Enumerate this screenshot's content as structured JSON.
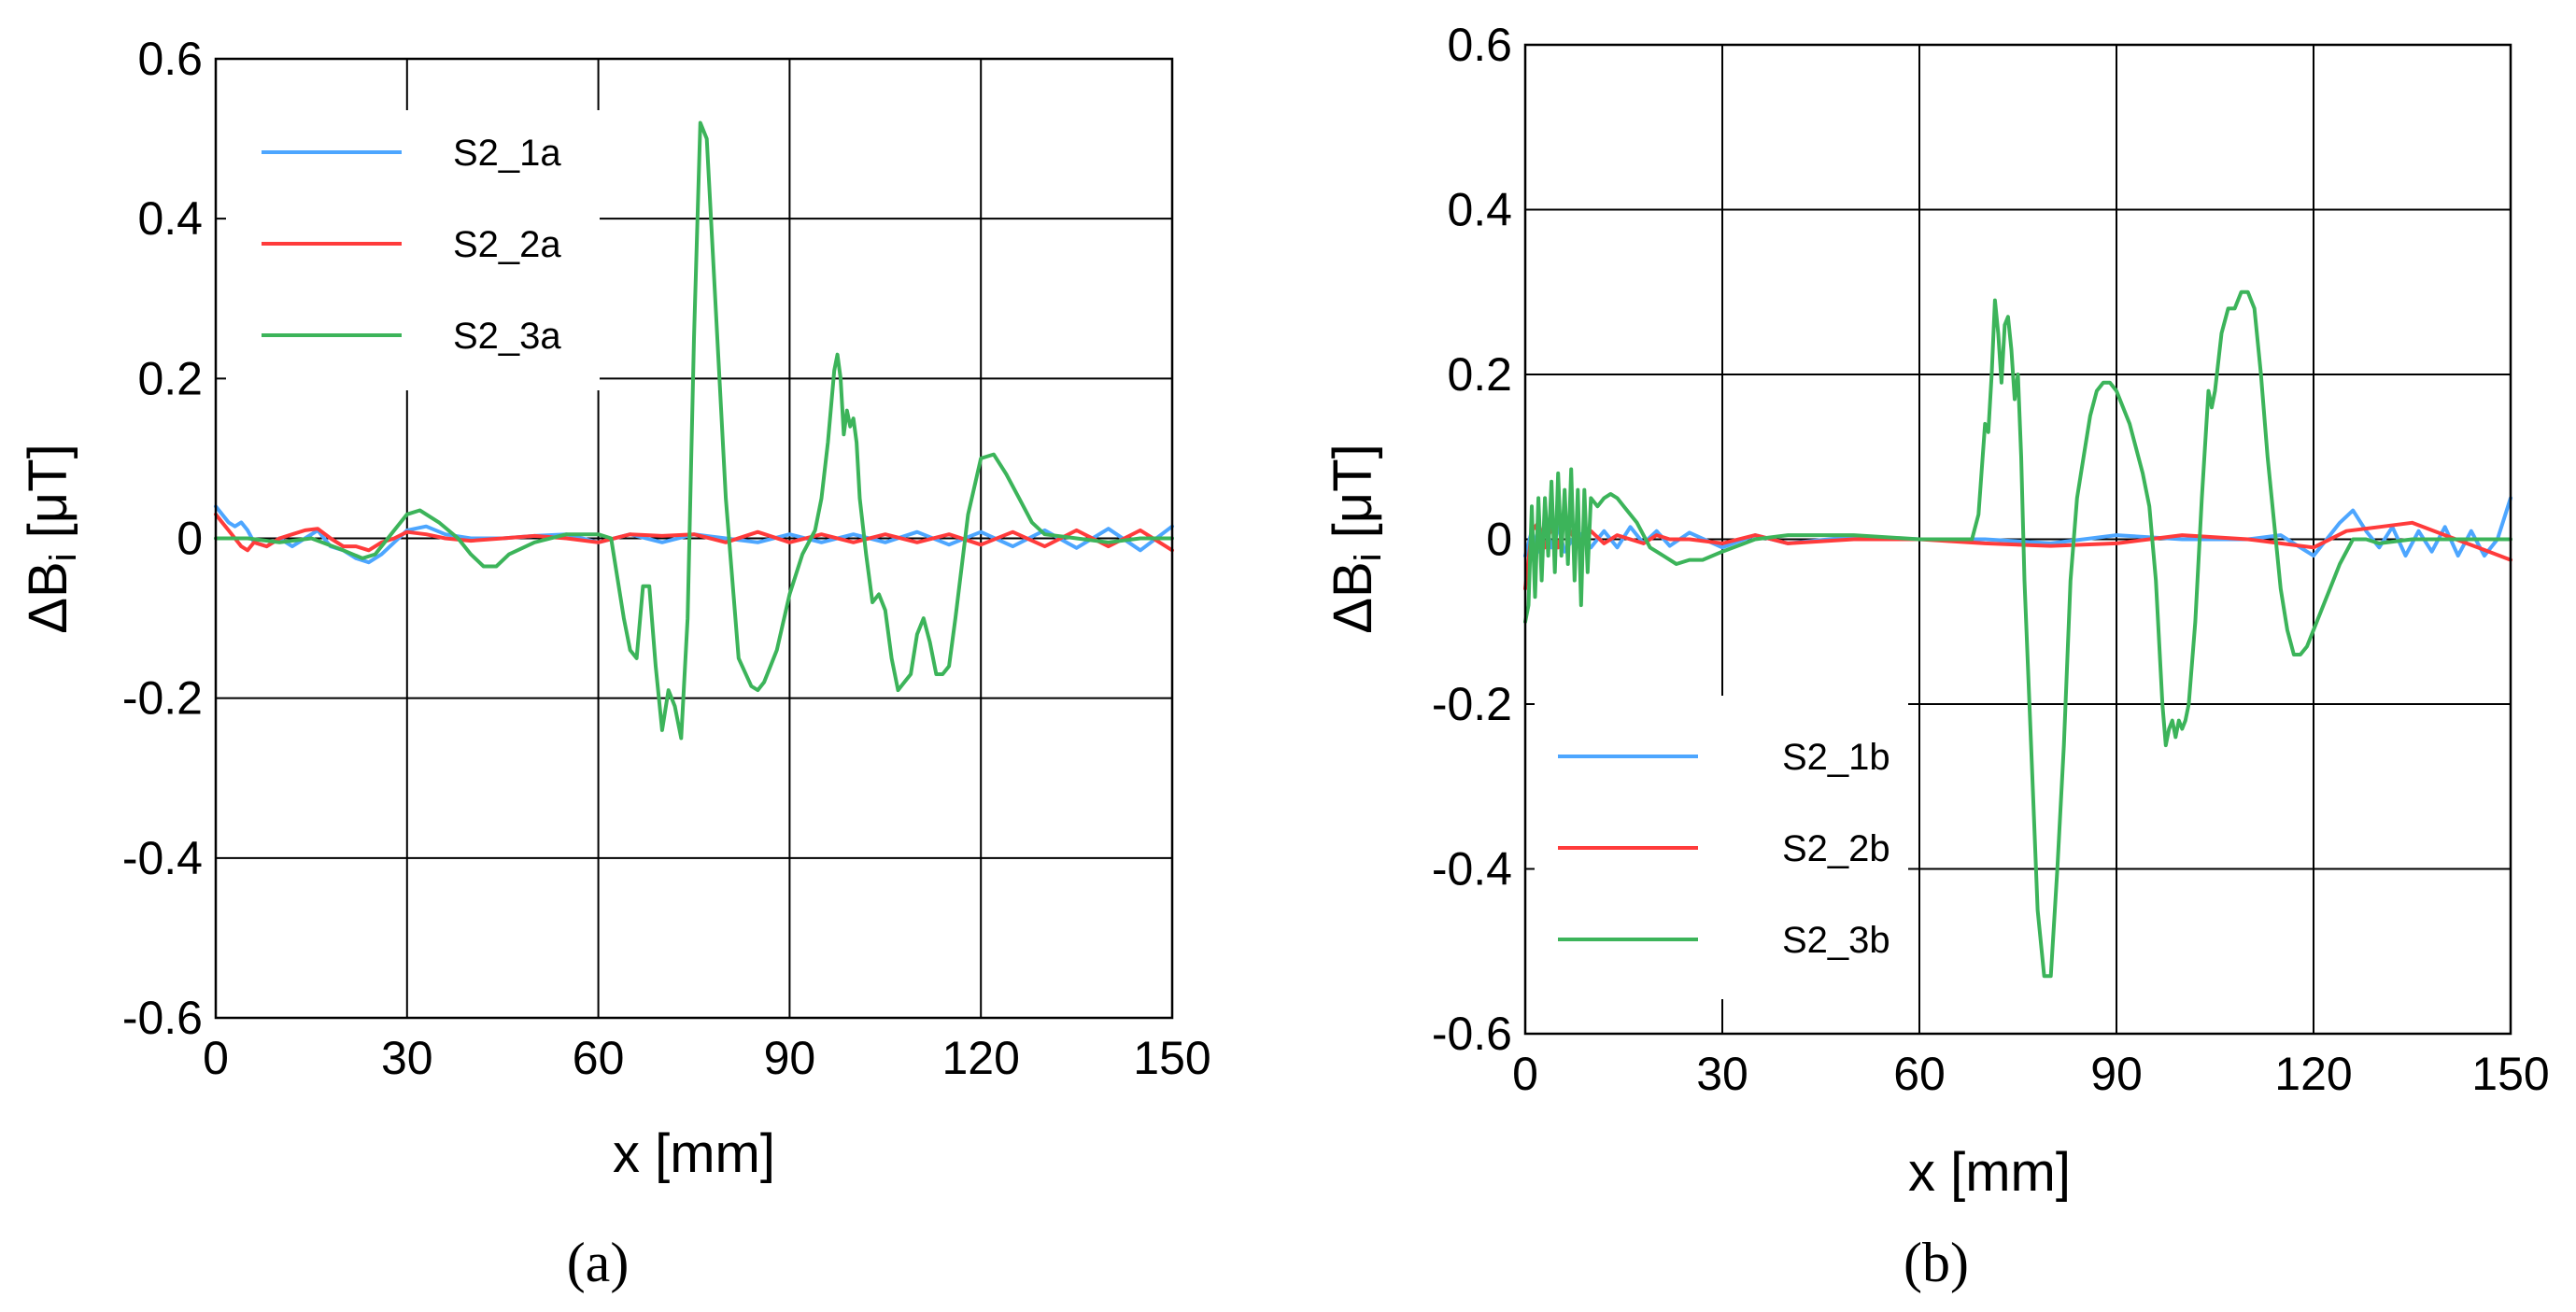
{
  "chart_data": [
    {
      "type": "line",
      "panel_label": "(a)",
      "xlabel": "x [mm]",
      "ylabel_main": "ΔB",
      "ylabel_sub": "i",
      "ylabel_unit": " [μT]",
      "xlim": [
        0,
        150
      ],
      "ylim": [
        -0.6,
        0.6
      ],
      "xticks": [
        0,
        30,
        60,
        90,
        120,
        150
      ],
      "xtick_labels": [
        "0",
        "30",
        "60",
        "90",
        "120",
        "150"
      ],
      "yticks": [
        -0.6,
        -0.4,
        -0.2,
        0,
        0.2,
        0.4,
        0.6
      ],
      "ytick_labels": [
        "-0.6",
        "-0.4",
        "-0.2",
        "0",
        "0.2",
        "0.4",
        "0.6"
      ],
      "grid": true,
      "legend_position": "top-left",
      "series": [
        {
          "name": "S2_1a",
          "color": "#4da6ff",
          "x": [
            0,
            1,
            2,
            3,
            4,
            5,
            6,
            8,
            10,
            12,
            14,
            16,
            18,
            20,
            22,
            24,
            26,
            28,
            30,
            33,
            36,
            40,
            45,
            50,
            55,
            60,
            65,
            70,
            75,
            80,
            85,
            90,
            95,
            100,
            105,
            110,
            115,
            120,
            125,
            130,
            135,
            140,
            145,
            150
          ],
          "y": [
            0.04,
            0.03,
            0.02,
            0.015,
            0.02,
            0.01,
            -0.005,
            -0.01,
            0.0,
            -0.01,
            0.0,
            0.01,
            -0.01,
            -0.015,
            -0.025,
            -0.03,
            -0.02,
            -0.005,
            0.01,
            0.015,
            0.005,
            0.0,
            0.0,
            0.003,
            0.005,
            -0.005,
            0.005,
            -0.005,
            0.005,
            0.0,
            -0.005,
            0.005,
            -0.005,
            0.005,
            -0.005,
            0.008,
            -0.008,
            0.008,
            -0.01,
            0.01,
            -0.012,
            0.012,
            -0.015,
            0.015
          ]
        },
        {
          "name": "S2_2a",
          "color": "#ff3b3b",
          "x": [
            0,
            1,
            2,
            3,
            4,
            5,
            6,
            8,
            10,
            12,
            14,
            16,
            18,
            20,
            22,
            24,
            26,
            28,
            30,
            33,
            36,
            40,
            45,
            50,
            55,
            60,
            65,
            70,
            75,
            80,
            85,
            90,
            95,
            100,
            105,
            110,
            115,
            120,
            125,
            130,
            135,
            140,
            145,
            150
          ],
          "y": [
            0.03,
            0.02,
            0.01,
            0.0,
            -0.01,
            -0.015,
            -0.005,
            -0.01,
            0.0,
            0.005,
            0.01,
            0.012,
            0.0,
            -0.01,
            -0.01,
            -0.015,
            -0.005,
            0.0,
            0.008,
            0.005,
            0.0,
            -0.003,
            0.0,
            0.003,
            0.0,
            -0.005,
            0.005,
            0.003,
            0.005,
            -0.005,
            0.008,
            -0.005,
            0.005,
            -0.005,
            0.005,
            -0.005,
            0.005,
            -0.008,
            0.008,
            -0.01,
            0.01,
            -0.01,
            0.01,
            -0.015
          ]
        },
        {
          "name": "S2_3a",
          "color": "#3cb45a",
          "x": [
            0,
            5,
            10,
            15,
            20,
            23,
            25,
            28,
            30,
            32,
            35,
            38,
            40,
            42,
            44,
            46,
            50,
            55,
            60,
            62,
            63,
            64,
            65,
            66,
            67,
            68,
            69,
            70,
            71,
            72,
            73,
            74,
            75,
            76,
            77,
            78,
            80,
            82,
            84,
            85,
            86,
            88,
            90,
            92,
            94,
            95,
            96,
            97,
            97.5,
            98,
            98.5,
            99,
            99.5,
            100,
            100.5,
            101,
            102,
            103,
            104,
            105,
            106,
            107,
            108,
            109,
            110,
            111,
            112,
            113,
            114,
            115,
            116,
            118,
            120,
            122,
            124,
            126,
            128,
            130,
            135,
            140,
            145,
            150
          ],
          "y": [
            0,
            0,
            -0.005,
            0,
            -0.015,
            -0.025,
            -0.02,
            0.01,
            0.03,
            0.035,
            0.02,
            0,
            -0.02,
            -0.035,
            -0.035,
            -0.02,
            -0.005,
            0.005,
            0.005,
            0,
            -0.05,
            -0.1,
            -0.14,
            -0.15,
            -0.06,
            -0.06,
            -0.16,
            -0.24,
            -0.19,
            -0.21,
            -0.25,
            -0.1,
            0.25,
            0.52,
            0.5,
            0.35,
            0.05,
            -0.15,
            -0.185,
            -0.19,
            -0.18,
            -0.14,
            -0.07,
            -0.02,
            0.01,
            0.05,
            0.12,
            0.21,
            0.23,
            0.2,
            0.13,
            0.16,
            0.14,
            0.15,
            0.12,
            0.05,
            -0.02,
            -0.08,
            -0.07,
            -0.09,
            -0.15,
            -0.19,
            -0.18,
            -0.17,
            -0.12,
            -0.1,
            -0.13,
            -0.17,
            -0.17,
            -0.16,
            -0.1,
            0.03,
            0.1,
            0.105,
            0.08,
            0.05,
            0.02,
            0.005,
            0,
            -0.005,
            0,
            0
          ]
        }
      ]
    },
    {
      "type": "line",
      "panel_label": "(b)",
      "xlabel": "x [mm]",
      "ylabel_main": "ΔB",
      "ylabel_sub": "i",
      "ylabel_unit": " [μT]",
      "xlim": [
        0,
        150
      ],
      "ylim": [
        -0.6,
        0.6
      ],
      "xticks": [
        0,
        30,
        60,
        90,
        120,
        150
      ],
      "xtick_labels": [
        "0",
        "30",
        "60",
        "90",
        "120",
        "150"
      ],
      "yticks": [
        -0.6,
        -0.4,
        -0.2,
        0,
        0.2,
        0.4,
        0.6
      ],
      "ytick_labels": [
        "-0.6",
        "-0.4",
        "-0.2",
        "0",
        "0.2",
        "0.4",
        "0.6"
      ],
      "grid": true,
      "legend_position": "bottom-left",
      "series": [
        {
          "name": "S2_1b",
          "color": "#4da6ff",
          "x": [
            0,
            1,
            2,
            3,
            4,
            5,
            6,
            8,
            10,
            12,
            14,
            16,
            18,
            20,
            22,
            25,
            30,
            35,
            40,
            50,
            60,
            70,
            80,
            90,
            100,
            110,
            115,
            118,
            120,
            122,
            124,
            126,
            128,
            130,
            132,
            134,
            136,
            138,
            140,
            142,
            144,
            146,
            148,
            150
          ],
          "y": [
            -0.02,
            0.01,
            -0.015,
            0.02,
            -0.01,
            0.015,
            -0.015,
            0.01,
            -0.01,
            0.01,
            -0.01,
            0.015,
            -0.005,
            0.01,
            -0.008,
            0.008,
            -0.01,
            0.005,
            -0.005,
            0.003,
            0.0,
            0.0,
            -0.005,
            0.005,
            0.0,
            0.0,
            0.005,
            -0.01,
            -0.02,
            0.0,
            0.02,
            0.035,
            0.01,
            -0.01,
            0.015,
            -0.02,
            0.01,
            -0.015,
            0.015,
            -0.02,
            0.01,
            -0.02,
            0.0,
            0.05
          ]
        },
        {
          "name": "S2_2b",
          "color": "#ff3b3b",
          "x": [
            0,
            1,
            2,
            3,
            4,
            5,
            6,
            8,
            10,
            12,
            14,
            16,
            18,
            20,
            22,
            25,
            30,
            35,
            40,
            50,
            60,
            70,
            80,
            90,
            100,
            110,
            115,
            120,
            125,
            130,
            135,
            140,
            145,
            150
          ],
          "y": [
            -0.06,
            0.01,
            0.02,
            -0.01,
            0.015,
            -0.01,
            0.02,
            -0.005,
            0.01,
            -0.005,
            0.005,
            0.0,
            -0.005,
            0.005,
            0.0,
            0.0,
            -0.005,
            0.005,
            -0.005,
            0.0,
            0.0,
            -0.005,
            -0.008,
            -0.005,
            0.005,
            0.0,
            -0.005,
            -0.01,
            0.01,
            0.015,
            0.02,
            0.005,
            -0.01,
            -0.025
          ]
        },
        {
          "name": "S2_3b",
          "color": "#3cb45a",
          "x": [
            0,
            0.5,
            1,
            1.5,
            2,
            2.5,
            3,
            3.5,
            4,
            4.5,
            5,
            5.5,
            6,
            6.5,
            7,
            7.5,
            8,
            8.5,
            9,
            9.5,
            10,
            11,
            12,
            13,
            14,
            15,
            17,
            19,
            21,
            23,
            25,
            27,
            30,
            35,
            40,
            50,
            60,
            65,
            68,
            69,
            70,
            70.5,
            71,
            71.5,
            72,
            72.5,
            73,
            73.5,
            74,
            74.5,
            75,
            75.5,
            76,
            77,
            78,
            79,
            80,
            81,
            82,
            83,
            84,
            85,
            86,
            87,
            88,
            89,
            90,
            92,
            94,
            95,
            96,
            97,
            97.5,
            98,
            98.5,
            99,
            99.5,
            100,
            100.5,
            101,
            102,
            103,
            104,
            104.5,
            105,
            106,
            107,
            108,
            109,
            110,
            111,
            112,
            113,
            114,
            115,
            116,
            117,
            118,
            119,
            120,
            122,
            124,
            126,
            128,
            130,
            135,
            140,
            150
          ],
          "y": [
            -0.1,
            -0.08,
            0.04,
            -0.07,
            0.05,
            -0.05,
            0.05,
            -0.02,
            0.07,
            -0.04,
            0.08,
            -0.02,
            0.06,
            -0.03,
            0.085,
            -0.05,
            0.06,
            -0.08,
            0.06,
            -0.04,
            0.05,
            0.04,
            0.05,
            0.055,
            0.05,
            0.04,
            0.02,
            -0.01,
            -0.02,
            -0.03,
            -0.025,
            -0.025,
            -0.015,
            0.0,
            0.005,
            0.005,
            0.0,
            0.0,
            0.0,
            0.03,
            0.14,
            0.13,
            0.2,
            0.29,
            0.25,
            0.19,
            0.26,
            0.27,
            0.23,
            0.17,
            0.2,
            0.1,
            -0.05,
            -0.25,
            -0.45,
            -0.53,
            -0.53,
            -0.4,
            -0.25,
            -0.05,
            0.05,
            0.1,
            0.15,
            0.18,
            0.19,
            0.19,
            0.18,
            0.14,
            0.08,
            0.04,
            -0.05,
            -0.2,
            -0.25,
            -0.23,
            -0.22,
            -0.24,
            -0.22,
            -0.23,
            -0.22,
            -0.2,
            -0.1,
            0.05,
            0.18,
            0.16,
            0.18,
            0.25,
            0.28,
            0.28,
            0.3,
            0.3,
            0.28,
            0.2,
            0.1,
            0.02,
            -0.06,
            -0.11,
            -0.14,
            -0.14,
            -0.13,
            -0.11,
            -0.07,
            -0.03,
            0.0,
            0.0,
            -0.005,
            0.0,
            0.0,
            0.0
          ]
        }
      ]
    }
  ]
}
